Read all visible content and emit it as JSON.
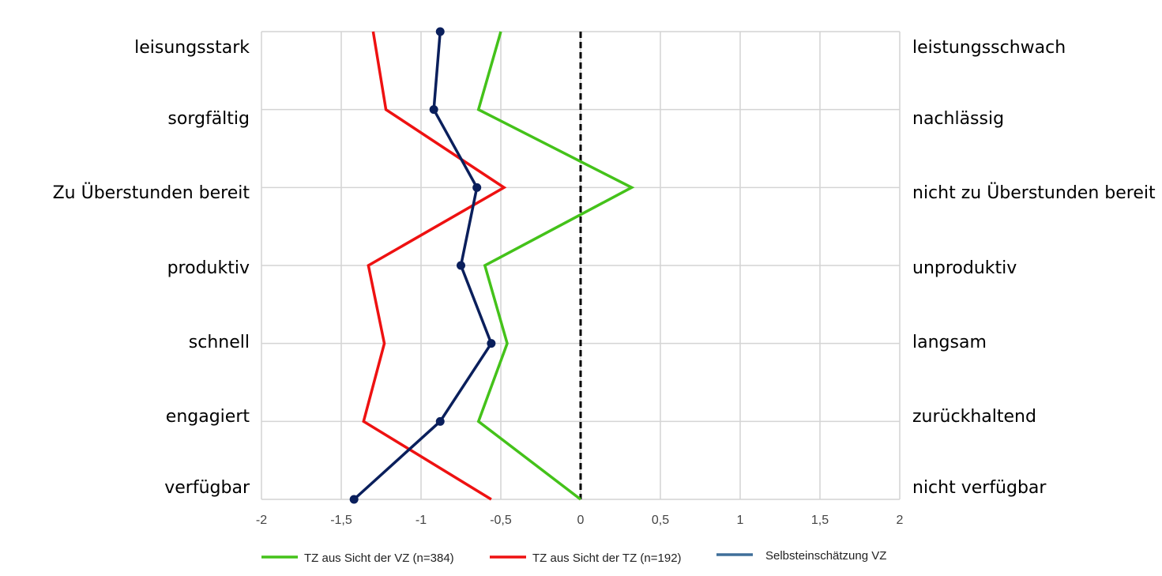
{
  "chart_data": {
    "type": "line",
    "orientation": "horizontal-profile",
    "title": "",
    "xlabel": "",
    "ylabel": "",
    "xlim": [
      -2,
      2
    ],
    "x_ticks": [
      -2,
      -1.5,
      -1,
      -0.5,
      0,
      0.5,
      1,
      1.5,
      2
    ],
    "x_tick_labels": [
      "-2",
      "-1,5",
      "-1",
      "-0,5",
      "0",
      "0,5",
      "1",
      "1,5",
      "2"
    ],
    "grid": true,
    "reference_line": {
      "x": 0,
      "style": "dashed",
      "color": "#000000"
    },
    "categories_left": [
      "leisungsstark",
      "sorgfältig",
      "Zu Überstunden bereit",
      "produktiv",
      "schnell",
      "engagiert",
      "verfügbar"
    ],
    "categories_right": [
      "leistungsschwach",
      "nachlässig",
      "nicht zu Überstunden bereit",
      "unproduktiv",
      "langsam",
      "zurückhaltend",
      "nicht verfügbar"
    ],
    "series": [
      {
        "name": "TZ aus Sicht der VZ (n=384)",
        "color": "#44c21a",
        "markers": false,
        "values": [
          -0.5,
          -0.64,
          0.32,
          -0.6,
          -0.46,
          -0.64,
          0.0
        ]
      },
      {
        "name": "TZ aus Sicht der TZ (n=192)",
        "color": "#ee1111",
        "markers": false,
        "values": [
          -1.3,
          -1.22,
          -0.48,
          -1.33,
          -1.23,
          -1.36,
          -0.56
        ]
      },
      {
        "name": "Selbsteinschätzung VZ",
        "color": "#0a1f5c",
        "legend_color": "#3f6f9a",
        "markers": true,
        "values": [
          -0.88,
          -0.92,
          -0.65,
          -0.75,
          -0.56,
          -0.88,
          -1.42
        ]
      }
    ],
    "legend_position": "bottom"
  }
}
